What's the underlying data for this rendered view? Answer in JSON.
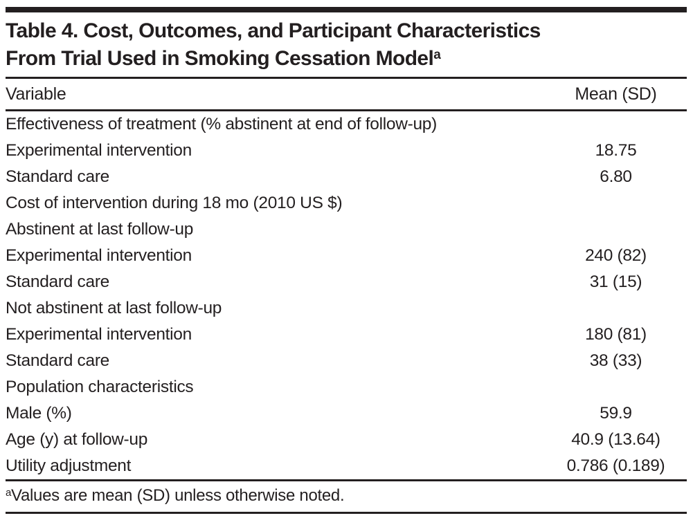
{
  "table": {
    "title_line1": "Table 4. Cost, Outcomes, and Participant Characteristics",
    "title_line2": "From Trial Used in Smoking Cessation Model",
    "title_superscript": "a",
    "columns": {
      "variable": "Variable",
      "value": "Mean (SD)"
    },
    "rows": [
      {
        "label": "Effectiveness of treatment (% abstinent at end of follow-up)",
        "indent": 0,
        "value": ""
      },
      {
        "label": "Experimental intervention",
        "indent": 1,
        "value": "18.75"
      },
      {
        "label": "Standard care",
        "indent": 1,
        "value": "6.80"
      },
      {
        "label": "Cost of intervention during 18 mo (2010 US $)",
        "indent": 0,
        "value": ""
      },
      {
        "label": "Abstinent at last follow-up",
        "indent": 1,
        "value": ""
      },
      {
        "label": "Experimental intervention",
        "indent": 2,
        "value": "240 (82)"
      },
      {
        "label": "Standard care",
        "indent": 2,
        "value": "31 (15)"
      },
      {
        "label": "Not abstinent at last follow-up",
        "indent": 1,
        "value": ""
      },
      {
        "label": "Experimental intervention",
        "indent": 2,
        "value": "180 (81)"
      },
      {
        "label": "Standard care",
        "indent": 2,
        "value": "38 (33)"
      },
      {
        "label": "Population characteristics",
        "indent": 0,
        "value": ""
      },
      {
        "label": "Male (%)",
        "indent": 1,
        "value": "59.9"
      },
      {
        "label": "Age (y) at follow-up",
        "indent": 1,
        "value": "40.9 (13.64)"
      },
      {
        "label": "Utility adjustment",
        "indent": 1,
        "value": "0.786 (0.189)"
      }
    ],
    "footnote_superscript": "a",
    "footnote_text": "Values are mean (SD) unless otherwise noted."
  },
  "colors": {
    "text": "#231f20",
    "rule": "#231f20",
    "background": "#ffffff"
  }
}
